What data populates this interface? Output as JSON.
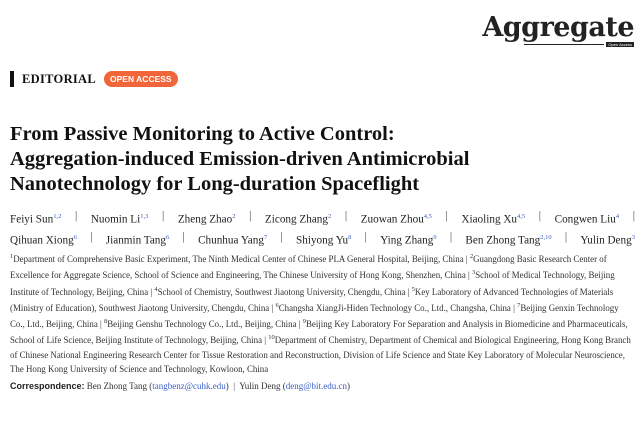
{
  "journal": {
    "name": "Aggregate",
    "tagline": "Open Access"
  },
  "section": {
    "type": "EDITORIAL",
    "badge": "OPEN ACCESS",
    "badge_color": "#f0653a"
  },
  "title": [
    "From Passive Monitoring to Active Control:",
    "Aggregation-induced Emission-driven Antimicrobial",
    "Nanotechnology for Long-duration Spaceflight"
  ],
  "authors": [
    [
      {
        "name": "Feiyi Sun",
        "aff": "1,2"
      },
      {
        "name": "Nuomin Li",
        "aff": "1,3"
      },
      {
        "name": "Zheng Zhao",
        "aff": "2"
      },
      {
        "name": "Zicong Zhang",
        "aff": "2"
      },
      {
        "name": "Zuowan Zhou",
        "aff": "4,5"
      },
      {
        "name": "Xiaoling Xu",
        "aff": "4,5"
      },
      {
        "name": "Congwen Liu",
        "aff": "4"
      }
    ],
    [
      {
        "name": "Qihuan Xiong",
        "aff": "6"
      },
      {
        "name": "Jianmin Tang",
        "aff": "6"
      },
      {
        "name": "Chunhua Yang",
        "aff": "7"
      },
      {
        "name": "Shiyong Yu",
        "aff": "8"
      },
      {
        "name": "Ying Zhang",
        "aff": "9"
      },
      {
        "name": "Ben Zhong Tang",
        "aff": "2,10"
      },
      {
        "name": "Yulin Deng",
        "aff": "3"
      }
    ]
  ],
  "affiliations": [
    {
      "n": "1",
      "text": "Department of Comprehensive Basic Experiment, The Ninth Medical Center of Chinese PLA General Hospital, Beijing, China"
    },
    {
      "n": "2",
      "text": "Guangdong Basic Research Center of Excellence for Aggregate Science, School of Science and Engineering, The Chinese University of Hong Kong, Shenzhen, China"
    },
    {
      "n": "3",
      "text": "School of Medical Technology, Beijing Institute of Technology, Beijing, China"
    },
    {
      "n": "4",
      "text": "School of Chemistry, Southwest Jiaotong University, Chengdu, China"
    },
    {
      "n": "5",
      "text": "Key Laboratory of Advanced Technologies of Materials (Ministry of Education), Southwest Jiaotong University, Chengdu, China"
    },
    {
      "n": "6",
      "text": "Changsha XiangJi-Hiden Technology Co., Ltd., Changsha, China"
    },
    {
      "n": "7",
      "text": "Beijing Genxin Technology Co., Ltd., Beijing, China"
    },
    {
      "n": "8",
      "text": "Beijing Genshu Technology Co., Ltd., Beijing, China"
    },
    {
      "n": "9",
      "text": "Beijing Key Laboratory For Separation and Analysis in Biomedicine and Pharmaceuticals, School of Life Science, Beijing Institute of Technology, Beijing, China"
    },
    {
      "n": "10",
      "text": "Department of Chemistry, Department of Chemical and Biological Engineering, Hong Kong Branch of Chinese National Engineering Research Center for Tissue Restoration and Reconstruction, Division of Life Science and State Key Laboratory of Molecular Neuroscience, The Hong Kong University of Science and Technology, Kowloon, China"
    }
  ],
  "correspondence": {
    "label": "Correspondence:",
    "contacts": [
      {
        "name": "Ben Zhong Tang",
        "email": "tangbenz@cuhk.edu"
      },
      {
        "name": "Yulin Deng",
        "email": "deng@bit.edu.cn"
      }
    ]
  }
}
